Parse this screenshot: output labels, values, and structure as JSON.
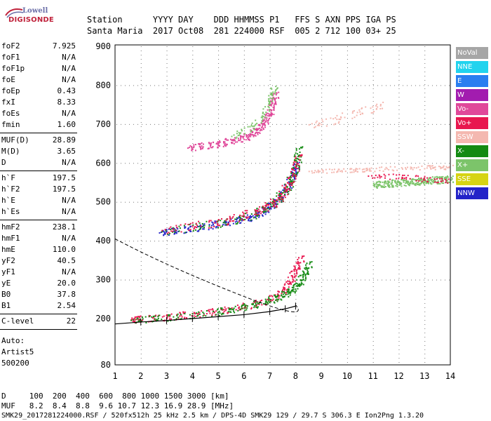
{
  "logo": {
    "top": "Lowell",
    "bottom": "DIGISONDE"
  },
  "header": {
    "row1": "Station      YYYY DAY    DDD HHMMSS P1   FFS S AXN PPS IGA PS",
    "row2": "Santa Maria  2017 Oct08  281 224000 RSF  005 2 712 100 03+ 25"
  },
  "params_group1": [
    {
      "name": "foF2",
      "value": "7.925"
    },
    {
      "name": "foF1",
      "value": "N/A"
    },
    {
      "name": "foF1p",
      "value": "N/A"
    },
    {
      "name": "foE",
      "value": "N/A"
    },
    {
      "name": "foEp",
      "value": "0.43"
    },
    {
      "name": "fxI",
      "value": "8.33"
    },
    {
      "name": "foEs",
      "value": "N/A"
    },
    {
      "name": "fmin",
      "value": "1.60"
    }
  ],
  "params_group2": [
    {
      "name": "MUF(D)",
      "value": "28.89"
    },
    {
      "name": "M(D)",
      "value": "3.65"
    },
    {
      "name": "D",
      "value": "N/A"
    }
  ],
  "params_group3": [
    {
      "name": "h`F",
      "value": "197.5"
    },
    {
      "name": "h`F2",
      "value": "197.5"
    },
    {
      "name": "h`E",
      "value": "N/A"
    },
    {
      "name": "h`Es",
      "value": "N/A"
    }
  ],
  "params_group4": [
    {
      "name": "hmF2",
      "value": "238.1"
    },
    {
      "name": "hmF1",
      "value": "N/A"
    },
    {
      "name": "hmE",
      "value": "110.0"
    },
    {
      "name": "yF2",
      "value": "40.5"
    },
    {
      "name": "yF1",
      "value": "N/A"
    },
    {
      "name": "yE",
      "value": "20.0"
    },
    {
      "name": "B0",
      "value": "37.8"
    },
    {
      "name": "B1",
      "value": "2.54"
    }
  ],
  "clevel": {
    "name": "C-level",
    "value": "22"
  },
  "autoscaling": {
    "line1": "Auto:",
    "line2": "Artist5",
    "line3": "500200"
  },
  "legend": [
    {
      "label": "NoVal",
      "color": "#a6a6a6"
    },
    {
      "label": "NNE",
      "color": "#22d3ee"
    },
    {
      "label": "E",
      "color": "#2a7ef0"
    },
    {
      "label": "W",
      "color": "#a21caf"
    },
    {
      "label": "Vo-",
      "color": "#e0489a"
    },
    {
      "label": "Vo+",
      "color": "#e8174f"
    },
    {
      "label": "SSW",
      "color": "#f4b8b0"
    },
    {
      "label": "X-",
      "color": "#138a12"
    },
    {
      "label": "X+",
      "color": "#7cc46a"
    },
    {
      "label": "SSE",
      "color": "#d6d413"
    },
    {
      "label": "NNW",
      "color": "#2323c8"
    }
  ],
  "axis": {
    "x_ticks": [
      "1",
      "2",
      "3",
      "4",
      "5",
      "6",
      "7",
      "8",
      "9",
      "10",
      "11",
      "12",
      "13",
      "14"
    ],
    "y_ticks": [
      "80",
      "200",
      "300",
      "400",
      "500",
      "600",
      "700",
      "800",
      "900"
    ]
  },
  "chart_data": {
    "type": "scatter",
    "xlabel": "",
    "ylabel": "",
    "xlim": [
      1,
      14
    ],
    "ylim_labels": [
      "80",
      "200",
      "300",
      "400",
      "500",
      "600",
      "700",
      "800",
      "900"
    ],
    "series": [
      {
        "name": "Vo+",
        "points": [
          [
            1.6,
            198
          ],
          [
            2,
            200
          ],
          [
            3,
            205
          ],
          [
            4,
            212
          ],
          [
            5,
            220
          ],
          [
            6,
            232
          ],
          [
            7,
            250
          ],
          [
            7.5,
            272
          ],
          [
            7.8,
            300
          ],
          [
            8,
            330
          ],
          [
            8.2,
            360
          ]
        ]
      },
      {
        "name": "X-",
        "points": [
          [
            1.6,
            197
          ],
          [
            3,
            203
          ],
          [
            5,
            218
          ],
          [
            6,
            230
          ],
          [
            7,
            248
          ],
          [
            7.6,
            265
          ],
          [
            8,
            282
          ],
          [
            8.3,
            310
          ],
          [
            8.5,
            345
          ]
        ]
      },
      {
        "name": "NNW",
        "points": [
          [
            2.7,
            422
          ],
          [
            3.5,
            428
          ],
          [
            4.5,
            438
          ],
          [
            5.5,
            450
          ],
          [
            6.3,
            462
          ],
          [
            6.8,
            480
          ],
          [
            7.2,
            500
          ],
          [
            7.6,
            530
          ],
          [
            7.9,
            570
          ],
          [
            8,
            600
          ]
        ]
      },
      {
        "name": "Vo-",
        "points": [
          [
            3.8,
            640
          ],
          [
            5,
            650
          ],
          [
            6,
            665
          ],
          [
            6.6,
            690
          ],
          [
            7,
            730
          ],
          [
            7.2,
            780
          ]
        ]
      },
      {
        "name": "X+",
        "points": [
          [
            11,
            545
          ],
          [
            12,
            550
          ],
          [
            13,
            555
          ],
          [
            14,
            560
          ]
        ]
      },
      {
        "name": "model",
        "points": [
          [
            1,
            186
          ],
          [
            2,
            191
          ],
          [
            3,
            195
          ],
          [
            4,
            200
          ],
          [
            5,
            205
          ],
          [
            6,
            210
          ],
          [
            7,
            218
          ],
          [
            7.6,
            225
          ],
          [
            8,
            232
          ]
        ]
      }
    ]
  },
  "bottom": {
    "row1": "D     100  200  400  600  800 1000 1500 3000 [km]",
    "row2": "MUF   8.2  8.4  8.8  9.6 10.7 12.3 16.9 28.9 [MHz]",
    "footer": "SMK29_2017281224000.RSF / 520fx512h 25 kHz 2.5 km / DPS-4D SMK29 129 / 29.7 S 306.3 E Ion2Png 1.3.20"
  }
}
